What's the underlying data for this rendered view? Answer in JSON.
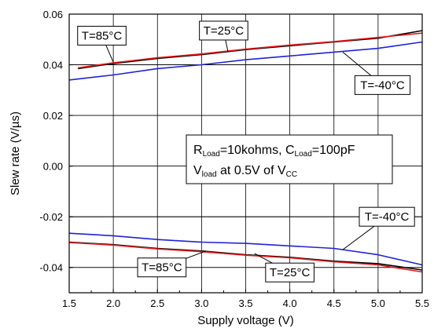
{
  "chart_data": {
    "type": "line",
    "title": "",
    "xlabel": "Supply voltage (V)",
    "ylabel": "Slew rate (V/µs)",
    "xlim": [
      1.5,
      5.5
    ],
    "ylim": [
      -0.05,
      0.06
    ],
    "xticks": [
      "1.5",
      "2.0",
      "2.5",
      "3.0",
      "3.5",
      "4.0",
      "4.5",
      "5.0",
      "5.5"
    ],
    "yticks": [
      "-0.04",
      "-0.02",
      "0.00",
      "0.02",
      "0.04",
      "0.06"
    ],
    "grid": true,
    "series": [
      {
        "color": "#000000",
        "x": [
          1.6,
          2.0,
          2.5,
          3.0,
          3.5,
          4.0,
          4.5,
          5.0,
          5.5
        ],
        "y": [
          0.0385,
          0.0405,
          0.0425,
          0.044,
          0.046,
          0.0475,
          0.049,
          0.0505,
          0.0535
        ]
      },
      {
        "color": "#e8191c",
        "x": [
          1.6,
          2.0,
          2.5,
          3.0,
          3.5,
          4.0,
          4.5,
          5.0,
          5.5
        ],
        "y": [
          0.0388,
          0.0408,
          0.0428,
          0.0443,
          0.0462,
          0.0478,
          0.0492,
          0.0508,
          0.0525
        ]
      },
      {
        "color": "#1f22d6",
        "x": [
          1.5,
          2.0,
          2.5,
          3.0,
          3.5,
          4.0,
          4.5,
          5.0,
          5.5
        ],
        "y": [
          0.034,
          0.036,
          0.0385,
          0.04,
          0.042,
          0.0435,
          0.045,
          0.0465,
          0.049
        ]
      },
      {
        "color": "#000000",
        "x": [
          1.5,
          2.0,
          2.5,
          3.0,
          3.5,
          4.0,
          4.5,
          5.0,
          5.5
        ],
        "y": [
          -0.03,
          -0.031,
          -0.0325,
          -0.0335,
          -0.035,
          -0.036,
          -0.0375,
          -0.0385,
          -0.041
        ]
      },
      {
        "color": "#e8191c",
        "x": [
          1.5,
          2.0,
          2.5,
          3.0,
          3.5,
          4.0,
          4.5,
          5.0,
          5.5
        ],
        "y": [
          -0.0302,
          -0.0312,
          -0.0327,
          -0.0338,
          -0.0352,
          -0.0362,
          -0.0378,
          -0.039,
          -0.0418
        ]
      },
      {
        "color": "#1f22d6",
        "x": [
          1.5,
          2.0,
          2.5,
          3.0,
          3.5,
          4.0,
          4.5,
          5.0,
          5.5
        ],
        "y": [
          -0.0265,
          -0.0275,
          -0.029,
          -0.03,
          -0.0305,
          -0.0315,
          -0.0325,
          -0.035,
          -0.039
        ]
      }
    ],
    "annotations": [
      {
        "text": "T=85°C",
        "box_x": 1.87,
        "box_y": 0.0515,
        "arrow_x": 2.0,
        "arrow_y": 0.041
      },
      {
        "text": "T=25°C",
        "box_x": 3.25,
        "box_y": 0.0535,
        "arrow_x": 3.3,
        "arrow_y": 0.045
      },
      {
        "text": "T=-40°C",
        "box_x": 5.05,
        "box_y": 0.032,
        "arrow_x": 4.6,
        "arrow_y": 0.045
      },
      {
        "text": "T=-40°C",
        "box_x": 5.1,
        "box_y": -0.02,
        "arrow_x": 4.6,
        "arrow_y": -0.033
      },
      {
        "text": "T=85°C",
        "box_x": 2.55,
        "box_y": -0.04,
        "arrow_x": 3.05,
        "arrow_y": -0.0335
      },
      {
        "text": "T=25°C",
        "box_x": 4.0,
        "box_y": -0.042,
        "arrow_x": 3.6,
        "arrow_y": -0.0345
      }
    ],
    "conditions": {
      "line1": [
        {
          "t": "R"
        },
        {
          "t": "Load",
          "sub": true
        },
        {
          "t": "=10kohms, C"
        },
        {
          "t": "Load",
          "sub": true
        },
        {
          "t": "=100pF"
        }
      ],
      "line2": [
        {
          "t": "V"
        },
        {
          "t": "load",
          "sub": true
        },
        {
          "t": " at 0.5V of V"
        },
        {
          "t": "CC",
          "sub": true
        }
      ]
    }
  }
}
